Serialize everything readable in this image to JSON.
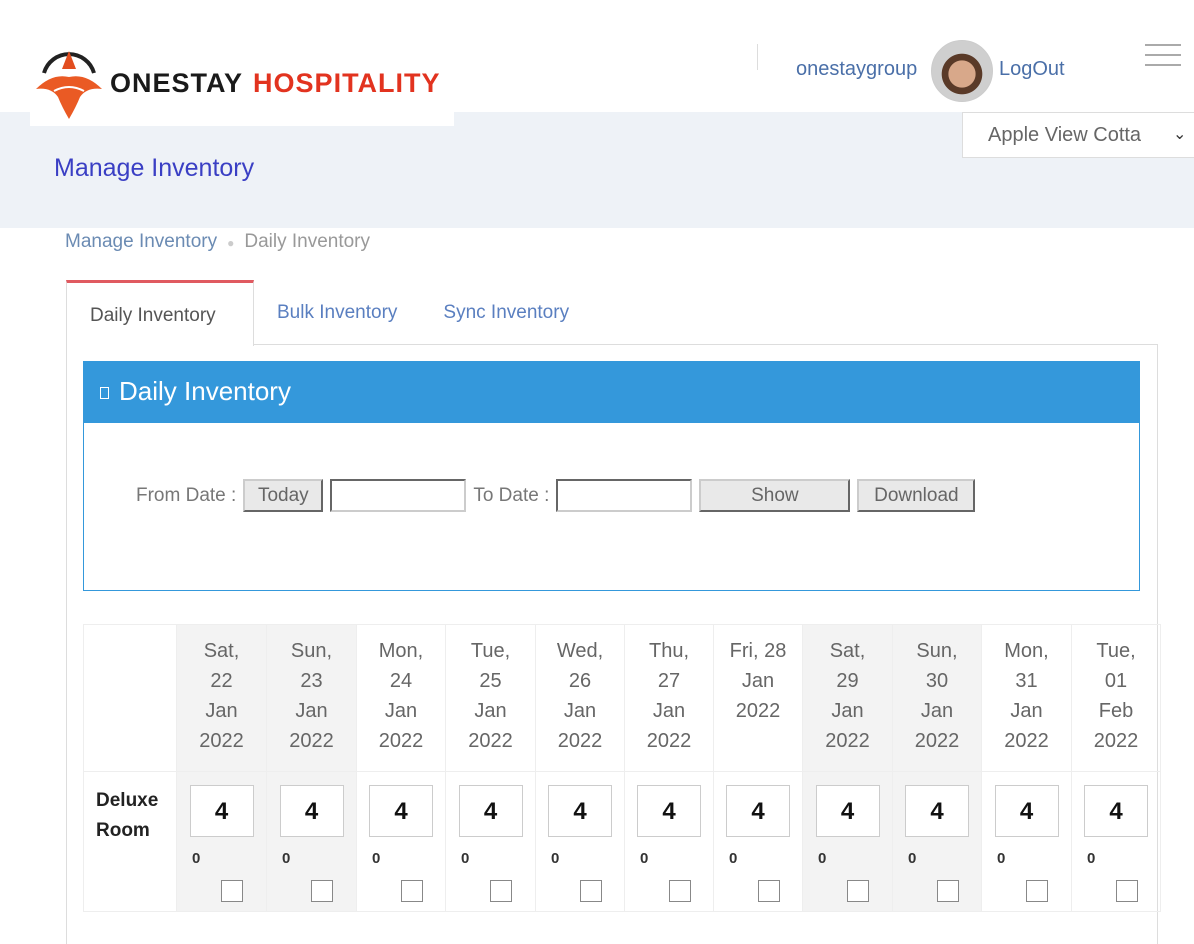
{
  "header": {
    "logo_text_1": "ONESTAY",
    "logo_text_2": "HOSPITALITY",
    "username": "onestaygroup",
    "logout": "LogOut",
    "property": "Apple View Cotta",
    "brand_colors": {
      "primary": "#e2331f",
      "panel": "#3498db"
    }
  },
  "page": {
    "title": "Manage Inventory",
    "breadcrumb": [
      "Manage Inventory",
      "Daily Inventory"
    ]
  },
  "tabs": [
    {
      "label": "Daily Inventory",
      "active": true
    },
    {
      "label": "Bulk Inventory"
    },
    {
      "label": "Sync Inventory"
    }
  ],
  "panel": {
    "title": "Daily Inventory",
    "from_label": "From Date :",
    "today": "Today",
    "from_value": "",
    "to_label": "To Date :",
    "to_value": "",
    "show": "Show",
    "download": "Download"
  },
  "grid": {
    "dates": [
      {
        "l1": "Sat,",
        "l2": "22",
        "l3": "Jan",
        "l4": "2022",
        "weekend": true
      },
      {
        "l1": "Sun,",
        "l2": "23",
        "l3": "Jan",
        "l4": "2022",
        "weekend": true
      },
      {
        "l1": "Mon,",
        "l2": "24",
        "l3": "Jan",
        "l4": "2022"
      },
      {
        "l1": "Tue,",
        "l2": "25",
        "l3": "Jan",
        "l4": "2022"
      },
      {
        "l1": "Wed,",
        "l2": "26",
        "l3": "Jan",
        "l4": "2022"
      },
      {
        "l1": "Thu,",
        "l2": "27",
        "l3": "Jan",
        "l4": "2022"
      },
      {
        "l1": "Fri, 28",
        "l2": "Jan",
        "l3": "2022",
        "l4": ""
      },
      {
        "l1": "Sat,",
        "l2": "29",
        "l3": "Jan",
        "l4": "2022",
        "weekend": true
      },
      {
        "l1": "Sun,",
        "l2": "30",
        "l3": "Jan",
        "l4": "2022",
        "weekend": true
      },
      {
        "l1": "Mon,",
        "l2": "31",
        "l3": "Jan",
        "l4": "2022"
      },
      {
        "l1": "Tue,",
        "l2": "01",
        "l3": "Feb",
        "l4": "2022"
      }
    ],
    "rooms": [
      {
        "name_1": "Deluxe",
        "name_2": "Room",
        "values": [
          "4",
          "4",
          "4",
          "4",
          "4",
          "4",
          "4",
          "4",
          "4",
          "4",
          "4"
        ],
        "sold": [
          "0",
          "0",
          "0",
          "0",
          "0",
          "0",
          "0",
          "0",
          "0",
          "0",
          "0"
        ]
      }
    ]
  }
}
